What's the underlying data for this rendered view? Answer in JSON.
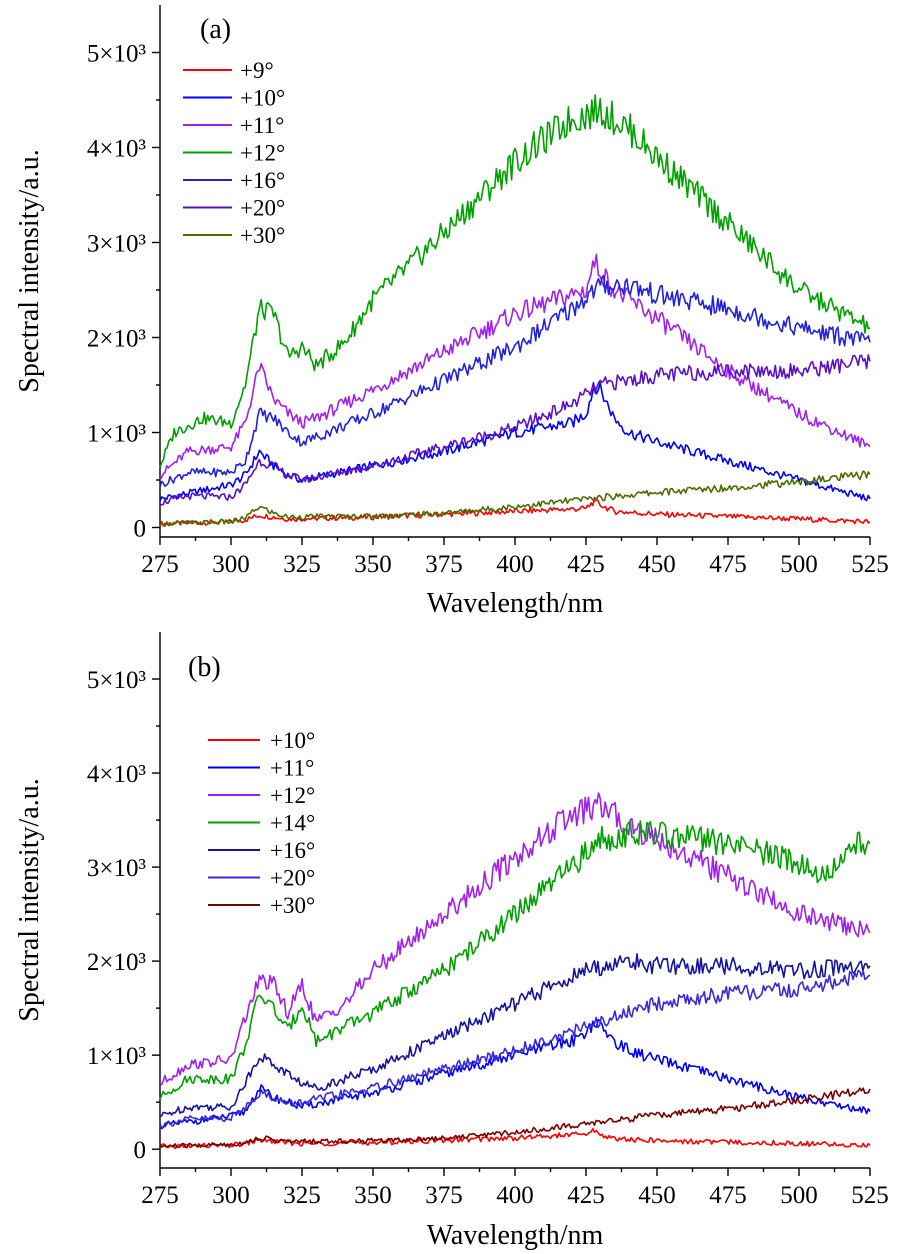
{
  "chart_data": [
    {
      "type": "line",
      "panel_label": "(a)",
      "xlabel": "Wavelength/nm",
      "ylabel": "Spectral intensity/a.u.",
      "xlim": [
        275,
        525
      ],
      "ylim": [
        -100,
        5500
      ],
      "x_ticks": [
        275,
        300,
        325,
        350,
        375,
        400,
        425,
        450,
        475,
        500,
        525
      ],
      "x_tick_labels": [
        "275",
        "300",
        "325",
        "350",
        "375",
        "400",
        "425",
        "450",
        "475",
        "500",
        "525"
      ],
      "y_ticks": [
        0,
        1000,
        2000,
        3000,
        4000,
        5000
      ],
      "y_tick_labels": [
        "0",
        "1×10³",
        "2×10³",
        "3×10³",
        "4×10³",
        "5×10³"
      ],
      "legend_position": "top-left",
      "series": [
        {
          "name": "+9°",
          "color": "#ff0000",
          "x": [
            275,
            300,
            305,
            310,
            315,
            320,
            350,
            400,
            425,
            428,
            430,
            435,
            450,
            500,
            525
          ],
          "y": [
            40,
            60,
            80,
            130,
            110,
            90,
            110,
            170,
            200,
            280,
            240,
            170,
            140,
            90,
            60
          ]
        },
        {
          "name": "+10°",
          "color": "#0000ff",
          "x": [
            275,
            285,
            300,
            305,
            310,
            315,
            320,
            325,
            350,
            375,
            400,
            410,
            420,
            425,
            428,
            430,
            435,
            440,
            450,
            475,
            500,
            525
          ],
          "y": [
            300,
            360,
            450,
            550,
            800,
            650,
            550,
            500,
            650,
            800,
            1000,
            1050,
            1100,
            1200,
            1500,
            1450,
            1150,
            1000,
            900,
            700,
            500,
            300
          ]
        },
        {
          "name": "+11°",
          "color": "#a020f0",
          "x": [
            275,
            285,
            300,
            305,
            310,
            315,
            320,
            325,
            330,
            350,
            375,
            400,
            420,
            425,
            428,
            430,
            435,
            450,
            475,
            500,
            525
          ],
          "y": [
            550,
            800,
            850,
            1100,
            1700,
            1350,
            1200,
            1100,
            1150,
            1450,
            1850,
            2250,
            2450,
            2500,
            2800,
            2700,
            2500,
            2200,
            1650,
            1200,
            850
          ]
        },
        {
          "name": "+12°",
          "color": "#00a000",
          "x": [
            275,
            280,
            290,
            300,
            305,
            310,
            315,
            320,
            325,
            330,
            340,
            350,
            375,
            400,
            420,
            430,
            440,
            450,
            475,
            500,
            525
          ],
          "y": [
            650,
            1000,
            1150,
            1100,
            1500,
            2300,
            2250,
            1800,
            1900,
            1700,
            1950,
            2400,
            3100,
            3850,
            4300,
            4400,
            4200,
            3900,
            3200,
            2500,
            2100
          ]
        },
        {
          "name": "+16°",
          "color": "#2222dd",
          "x": [
            275,
            285,
            300,
            305,
            310,
            315,
            320,
            325,
            330,
            350,
            375,
            400,
            420,
            430,
            440,
            450,
            475,
            500,
            525
          ],
          "y": [
            450,
            580,
            580,
            700,
            1200,
            1150,
            1000,
            900,
            950,
            1200,
            1550,
            1900,
            2300,
            2550,
            2550,
            2450,
            2300,
            2100,
            1950
          ]
        },
        {
          "name": "+20°",
          "color": "#5a10c8",
          "x": [
            275,
            285,
            300,
            305,
            310,
            315,
            320,
            325,
            350,
            375,
            400,
            420,
            430,
            450,
            475,
            500,
            525
          ],
          "y": [
            260,
            330,
            320,
            450,
            700,
            650,
            550,
            500,
            650,
            850,
            1050,
            1300,
            1500,
            1600,
            1650,
            1650,
            1750
          ]
        },
        {
          "name": "+30°",
          "color": "#4b6e00",
          "x": [
            275,
            300,
            305,
            310,
            315,
            320,
            350,
            375,
            400,
            425,
            450,
            475,
            500,
            525
          ],
          "y": [
            40,
            60,
            100,
            220,
            150,
            110,
            120,
            150,
            220,
            300,
            370,
            420,
            480,
            560
          ]
        }
      ]
    },
    {
      "type": "line",
      "panel_label": "(b)",
      "xlabel": "Wavelength/nm",
      "ylabel": "Spectral intensity/a.u.",
      "xlim": [
        275,
        525
      ],
      "ylim": [
        -200,
        5500
      ],
      "x_ticks": [
        275,
        300,
        325,
        350,
        375,
        400,
        425,
        450,
        475,
        500,
        525
      ],
      "x_tick_labels": [
        "275",
        "300",
        "325",
        "350",
        "375",
        "400",
        "425",
        "450",
        "475",
        "500",
        "525"
      ],
      "y_ticks": [
        0,
        1000,
        2000,
        3000,
        4000,
        5000
      ],
      "y_tick_labels": [
        "0",
        "1×10³",
        "2×10³",
        "3×10³",
        "4×10³",
        "5×10³"
      ],
      "legend_position": "upper-left",
      "series": [
        {
          "name": "+10°",
          "color": "#ff0000",
          "x": [
            275,
            300,
            305,
            310,
            315,
            325,
            350,
            400,
            425,
            428,
            430,
            435,
            450,
            500,
            525
          ],
          "y": [
            30,
            40,
            60,
            100,
            80,
            60,
            70,
            120,
            160,
            200,
            160,
            110,
            90,
            60,
            40
          ]
        },
        {
          "name": "+11°",
          "color": "#0000ff",
          "x": [
            275,
            300,
            305,
            310,
            315,
            320,
            325,
            330,
            350,
            375,
            400,
            420,
            425,
            428,
            430,
            435,
            440,
            450,
            475,
            500,
            525
          ],
          "y": [
            250,
            350,
            400,
            650,
            550,
            500,
            450,
            480,
            600,
            800,
            1000,
            1150,
            1250,
            1350,
            1300,
            1150,
            1050,
            950,
            750,
            550,
            400
          ]
        },
        {
          "name": "+12°",
          "color": "#a020f0",
          "x": [
            275,
            285,
            300,
            305,
            310,
            315,
            320,
            325,
            330,
            340,
            350,
            375,
            400,
            420,
            430,
            440,
            450,
            475,
            500,
            525
          ],
          "y": [
            700,
            900,
            950,
            1400,
            1800,
            1750,
            1450,
            1750,
            1350,
            1550,
            1900,
            2500,
            3100,
            3550,
            3650,
            3450,
            3300,
            2900,
            2500,
            2300
          ]
        },
        {
          "name": "+14°",
          "color": "#00a000",
          "x": [
            275,
            285,
            300,
            305,
            310,
            315,
            320,
            325,
            330,
            350,
            375,
            400,
            420,
            430,
            440,
            450,
            475,
            500,
            510,
            520,
            525
          ],
          "y": [
            550,
            750,
            750,
            1100,
            1650,
            1500,
            1250,
            1550,
            1150,
            1450,
            1900,
            2500,
            3000,
            3300,
            3350,
            3350,
            3250,
            3050,
            2900,
            3250,
            3250
          ]
        },
        {
          "name": "+16°",
          "color": "#1414a0",
          "x": [
            275,
            285,
            300,
            305,
            310,
            315,
            320,
            325,
            330,
            350,
            375,
            400,
            425,
            440,
            450,
            475,
            500,
            520,
            525
          ],
          "y": [
            350,
            450,
            450,
            700,
            1000,
            900,
            800,
            700,
            650,
            850,
            1200,
            1550,
            1900,
            2000,
            1950,
            1950,
            1900,
            1950,
            1950
          ]
        },
        {
          "name": "+20°",
          "color": "#3a2adc",
          "x": [
            275,
            285,
            300,
            305,
            310,
            315,
            320,
            325,
            350,
            375,
            400,
            425,
            440,
            450,
            475,
            500,
            525
          ],
          "y": [
            250,
            320,
            330,
            450,
            600,
            550,
            480,
            500,
            650,
            850,
            1050,
            1300,
            1450,
            1550,
            1650,
            1700,
            1850
          ]
        },
        {
          "name": "+30°",
          "color": "#7a0000",
          "x": [
            275,
            300,
            305,
            310,
            320,
            350,
            375,
            400,
            425,
            450,
            475,
            500,
            525
          ],
          "y": [
            30,
            50,
            70,
            120,
            80,
            90,
            120,
            180,
            270,
            360,
            430,
            520,
            640
          ]
        }
      ]
    }
  ]
}
